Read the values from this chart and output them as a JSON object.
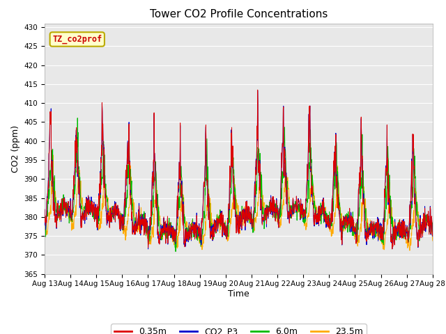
{
  "title": "Tower CO2 Profile Concentrations",
  "xlabel": "Time",
  "ylabel": "CO2 (ppm)",
  "ylim": [
    365,
    431
  ],
  "yticks": [
    365,
    370,
    375,
    380,
    385,
    390,
    395,
    400,
    405,
    410,
    415,
    420,
    425,
    430
  ],
  "n_days": 15,
  "pts_per_day": 96,
  "colors": {
    "035m": "#dd0000",
    "co2_p3": "#0000cc",
    "6m": "#00bb00",
    "235m": "#ffaa00"
  },
  "legend_labels": [
    "0.35m",
    "CO2_P3",
    "6.0m",
    "23.5m"
  ],
  "fig_bg": "#ffffff",
  "plot_bg": "#e8e8e8",
  "grid_color": "#ffffff",
  "date_labels": [
    "Aug 13",
    "Aug 14",
    "Aug 15",
    "Aug 16",
    "Aug 17",
    "Aug 18",
    "Aug 19",
    "Aug 20",
    "Aug 21",
    "Aug 22",
    "Aug 23",
    "Aug 24",
    "Aug 25",
    "Aug 26",
    "Aug 27",
    "Aug 28"
  ],
  "watermark": "TZ_co2prof",
  "watermark_color": "#cc0000",
  "watermark_bg": "#ffffcc",
  "watermark_edge": "#bbaa00",
  "tick_fontsize": 7.5,
  "label_fontsize": 9,
  "title_fontsize": 11
}
